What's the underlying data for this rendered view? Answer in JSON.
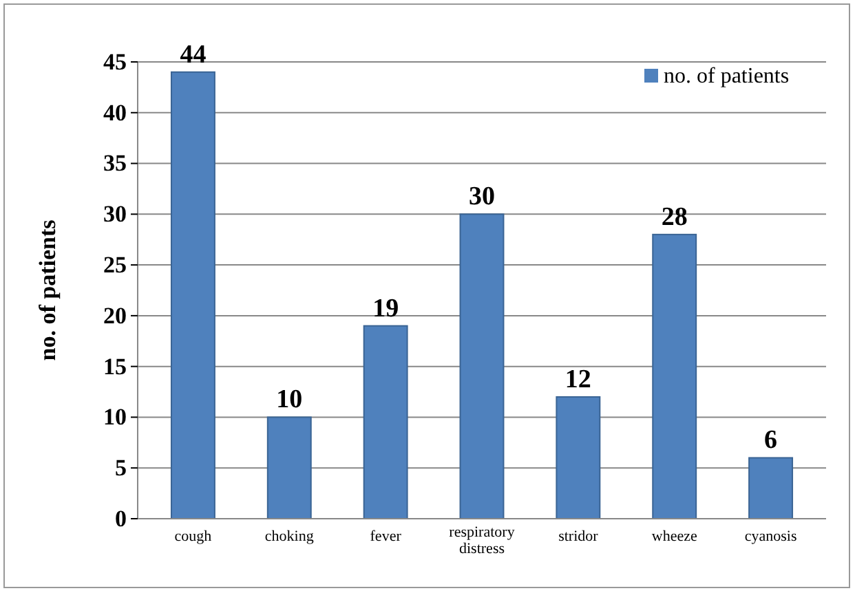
{
  "chart_data": {
    "type": "bar",
    "ylabel": "no. of patients",
    "categories": [
      "cough",
      "choking",
      "fever",
      "respiratory distress",
      "stridor",
      "wheeze",
      "cyanosis"
    ],
    "series": [
      {
        "name": "no. of patients",
        "color": "#4f81bd",
        "values": [
          44,
          10,
          19,
          30,
          12,
          28,
          6
        ]
      }
    ],
    "ylim": [
      0,
      45
    ],
    "yticks": [
      0,
      5,
      10,
      15,
      20,
      25,
      30,
      35,
      40,
      45
    ],
    "grid": "y",
    "legend": "top right",
    "data_labels": true
  }
}
